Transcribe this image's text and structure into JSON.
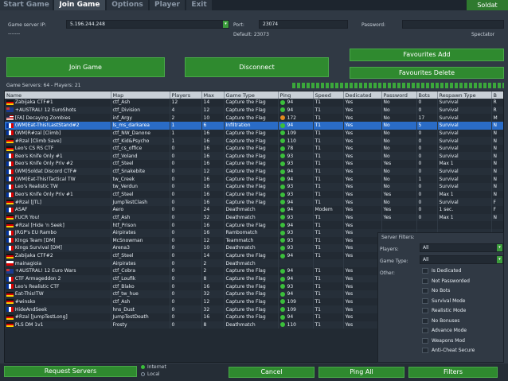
{
  "tabs": {
    "start_game": "Start Game",
    "join_game": "Join Game",
    "options": "Options",
    "player": "Player",
    "exit": "Exit",
    "brand": "Soldat"
  },
  "connect": {
    "ip_label": "Game server IP:",
    "ip_value": "5.196.244.248",
    "port_label": "Port:",
    "port_value": "23074",
    "port_default": "Default: 23073",
    "password_label": "Password:",
    "password_value": "",
    "spectator_label": "Spectator",
    "dashes": "-------"
  },
  "buttons": {
    "join": "Join Game",
    "disconnect": "Disconnect",
    "fav_add": "Favourites Add",
    "fav_delete": "Favourites Delete",
    "request": "Request Servers",
    "cancel": "Cancel",
    "ping_all": "Ping All",
    "filters": "Filters"
  },
  "status": {
    "servers_count": "Game Servers: 64 - Players: 21"
  },
  "columns": [
    "Name",
    "Map",
    "Players",
    "Max",
    "Game Type",
    "Ping",
    "Speed",
    "Dedicated",
    "Password",
    "Bots",
    "Respawn Type",
    "B"
  ],
  "rows": [
    {
      "flag": "de",
      "name": "Zabijaka CTF#1",
      "map": "ctf_Ash",
      "players": "12",
      "max": "14",
      "type": "Capture the Flag",
      "ping": "94",
      "speed": "T1",
      "ded": "Yes",
      "pass": "No",
      "bots": "0",
      "respawn": "Survival",
      "b": "R"
    },
    {
      "flag": "au",
      "name": "+AUSTRAL! 12 EuroShots",
      "map": "ctf_Division",
      "players": "4",
      "max": "12",
      "type": "Capture the Flag",
      "ping": "94",
      "speed": "T1",
      "ded": "Yes",
      "pass": "No",
      "bots": "0",
      "respawn": "Survival",
      "b": "R"
    },
    {
      "flag": "us",
      "name": "[FA] Decaying Zombies",
      "map": "inf_Argy",
      "players": "2",
      "max": "10",
      "type": "Capture the Flag",
      "ping": "172",
      "speed": "T1",
      "ded": "Yes",
      "pass": "No",
      "bots": "17",
      "respawn": "Survival",
      "b": "M",
      "ping_color": "orange"
    },
    {
      "flag": "fr",
      "name": "(WM)Eat-This!LastStand#2",
      "map": "ls_ms_darkarea",
      "players": "1",
      "max": "6",
      "type": "Infiltration",
      "ping": "94",
      "speed": "T1",
      "ded": "Yes",
      "pass": "No",
      "bots": "5",
      "respawn": "Survival",
      "b": "N",
      "selected": true
    },
    {
      "flag": "fr",
      "name": "(WM)R#zal [Climb]",
      "map": "ctf_NW_Danone",
      "players": "1",
      "max": "16",
      "type": "Capture the Flag",
      "ping": "109",
      "speed": "T1",
      "ded": "Yes",
      "pass": "No",
      "bots": "0",
      "respawn": "Survival",
      "b": "N"
    },
    {
      "flag": "de",
      "name": "#Rzal [Climb Save]",
      "map": "ctf_Kid&Psycho",
      "players": "1",
      "max": "16",
      "type": "Capture the Flag",
      "ping": "110",
      "speed": "T1",
      "ded": "Yes",
      "pass": "No",
      "bots": "0",
      "respawn": "Survival",
      "b": "N"
    },
    {
      "flag": "de",
      "name": "Leo's CS RS CTF",
      "map": "ctf_cs_office",
      "players": "0",
      "max": "16",
      "type": "Capture the Flag",
      "ping": "78",
      "speed": "T1",
      "ded": "Yes",
      "pass": "No",
      "bots": "0",
      "respawn": "Survival",
      "b": "N"
    },
    {
      "flag": "fr",
      "name": "Beo's Knife Only #1",
      "map": "ctf_Voland",
      "players": "0",
      "max": "16",
      "type": "Capture the Flag",
      "ping": "93",
      "speed": "T1",
      "ded": "Yes",
      "pass": "No",
      "bots": "0",
      "respawn": "Survival",
      "b": "N"
    },
    {
      "flag": "fr",
      "name": "Beo's Knife Only Priv #2",
      "map": "ctf_Steel",
      "players": "0",
      "max": "16",
      "type": "Capture the Flag",
      "ping": "93",
      "speed": "T1",
      "ded": "Yes",
      "pass": "Yes",
      "bots": "0",
      "respawn": "Max 1",
      "b": "N"
    },
    {
      "flag": "fr",
      "name": "(WM)Soldat Discord CTF#",
      "map": "ctf_Snakebite",
      "players": "0",
      "max": "12",
      "type": "Capture the Flag",
      "ping": "94",
      "speed": "T1",
      "ded": "Yes",
      "pass": "No",
      "bots": "0",
      "respawn": "Survival",
      "b": "N"
    },
    {
      "flag": "fr",
      "name": "(WM)Eat-This!Tactical TW",
      "map": "tw_Creek",
      "players": "0",
      "max": "16",
      "type": "Capture the Flag",
      "ping": "94",
      "speed": "T1",
      "ded": "Yes",
      "pass": "No",
      "bots": "1",
      "respawn": "Survival",
      "b": "N"
    },
    {
      "flag": "fr",
      "name": "Leo's Realistic TW",
      "map": "tw_Verdun",
      "players": "0",
      "max": "16",
      "type": "Capture the Flag",
      "ping": "93",
      "speed": "T1",
      "ded": "Yes",
      "pass": "No",
      "bots": "0",
      "respawn": "Survival",
      "b": "N"
    },
    {
      "flag": "fr",
      "name": "Beo's Knife Only Priv #1",
      "map": "ctf_Steel",
      "players": "0",
      "max": "16",
      "type": "Capture the Flag",
      "ping": "93",
      "speed": "T1",
      "ded": "Yes",
      "pass": "Yes",
      "bots": "0",
      "respawn": "Max 1",
      "b": "N"
    },
    {
      "flag": "de",
      "name": "#Rzal [JTL]",
      "map": "JumpTestClash",
      "players": "0",
      "max": "16",
      "type": "Capture the Flag",
      "ping": "94",
      "speed": "T1",
      "ded": "Yes",
      "pass": "No",
      "bots": "0",
      "respawn": "Survival",
      "b": "F"
    },
    {
      "flag": "fr",
      "name": "ASAF",
      "map": "Aero",
      "players": "0",
      "max": "24",
      "type": "Deathmatch",
      "ping": "94",
      "speed": "Modem",
      "ded": "Yes",
      "pass": "Yes",
      "bots": "0",
      "respawn": "1 sec.",
      "b": "F"
    },
    {
      "flag": "de",
      "name": "FUCR You!",
      "map": "ctf_Ash",
      "players": "0",
      "max": "32",
      "type": "Deathmatch",
      "ping": "93",
      "speed": "T1",
      "ded": "Yes",
      "pass": "Yes",
      "bots": "0",
      "respawn": "Max 1",
      "b": "N"
    },
    {
      "flag": "de",
      "name": "#Rzal [Hide 'n Seek]",
      "map": "htf_Prison",
      "players": "0",
      "max": "16",
      "type": "Capture the Flag",
      "ping": "94",
      "speed": "T1",
      "ded": "Yes",
      "pass": "",
      "bots": "",
      "respawn": "",
      "b": ""
    },
    {
      "flag": "fr",
      "name": "JRGP's EU Rambo",
      "map": "Airpirates",
      "players": "0",
      "max": "16",
      "type": "Rambomatch",
      "ping": "93",
      "speed": "T1",
      "ded": "Yes",
      "pass": "",
      "bots": "",
      "respawn": "",
      "b": ""
    },
    {
      "flag": "fr",
      "name": "KIngs Team [DM]",
      "map": "McSnowman",
      "players": "0",
      "max": "12",
      "type": "Teammatch",
      "ping": "93",
      "speed": "T1",
      "ded": "Yes",
      "pass": "",
      "bots": "",
      "respawn": "",
      "b": ""
    },
    {
      "flag": "fr",
      "name": "KIngs Survival [DM]",
      "map": "Arena3",
      "players": "0",
      "max": "10",
      "type": "Deathmatch",
      "ping": "93",
      "speed": "T1",
      "ded": "Yes",
      "pass": "",
      "bots": "",
      "respawn": "",
      "b": ""
    },
    {
      "flag": "de",
      "name": "Zabijaka CTF#2",
      "map": "ctf_Steel",
      "players": "0",
      "max": "14",
      "type": "Capture the Flag",
      "ping": "94",
      "speed": "T1",
      "ded": "Yes",
      "pass": "",
      "bots": "",
      "respawn": "",
      "b": ""
    },
    {
      "flag": "pl",
      "name": "mainagioia",
      "map": "Airpirates",
      "players": "0",
      "max": "2",
      "type": "Deathmatch",
      "ping": "",
      "speed": "",
      "ded": "",
      "pass": "",
      "bots": "",
      "respawn": "",
      "b": ""
    },
    {
      "flag": "au",
      "name": "+AUSTRAL! 12 Euro Wars",
      "map": "ctf_Cobra",
      "players": "0",
      "max": "2",
      "type": "Capture the Flag",
      "ping": "94",
      "speed": "T1",
      "ded": "Yes",
      "pass": "",
      "bots": "",
      "respawn": "",
      "b": ""
    },
    {
      "flag": "fr",
      "name": "CTF Armageddon 2",
      "map": "ctf_Loufik",
      "players": "0",
      "max": "8",
      "type": "Capture the Flag",
      "ping": "94",
      "speed": "T1",
      "ded": "Yes",
      "pass": "",
      "bots": "",
      "respawn": "",
      "b": ""
    },
    {
      "flag": "fr",
      "name": "Leo's Realistic CTF",
      "map": "ctf_Blako",
      "players": "0",
      "max": "16",
      "type": "Capture the Flag",
      "ping": "93",
      "speed": "T1",
      "ded": "Yes",
      "pass": "",
      "bots": "",
      "respawn": "",
      "b": ""
    },
    {
      "flag": "de",
      "name": "Eat-This!TW",
      "map": "ctf_tw_hue",
      "players": "0",
      "max": "32",
      "type": "Capture the Flag",
      "ping": "94",
      "speed": "T1",
      "ded": "Yes",
      "pass": "",
      "bots": "",
      "respawn": "",
      "b": ""
    },
    {
      "flag": "de",
      "name": "#winsko",
      "map": "ctf_Ash",
      "players": "0",
      "max": "12",
      "type": "Capture the Flag",
      "ping": "109",
      "speed": "T1",
      "ded": "Yes",
      "pass": "",
      "bots": "",
      "respawn": "",
      "b": ""
    },
    {
      "flag": "fr",
      "name": "HideAndSeek",
      "map": "hns_Dust",
      "players": "0",
      "max": "32",
      "type": "Capture the Flag",
      "ping": "109",
      "speed": "T1",
      "ded": "Yes",
      "pass": "",
      "bots": "",
      "respawn": "",
      "b": ""
    },
    {
      "flag": "de",
      "name": "#Rzal [JumpTestLong]",
      "map": "JumpTestDeath",
      "players": "0",
      "max": "16",
      "type": "Capture the Flag",
      "ping": "94",
      "speed": "T1",
      "ded": "Yes",
      "pass": "",
      "bots": "",
      "respawn": "",
      "b": ""
    },
    {
      "flag": "de",
      "name": "PLS DM 1v1",
      "map": "Frosty",
      "players": "0",
      "max": "8",
      "type": "Deathmatch",
      "ping": "110",
      "speed": "T1",
      "ded": "Yes",
      "pass": "",
      "bots": "",
      "respawn": "",
      "b": ""
    }
  ],
  "filters": {
    "title": "Server Filters:",
    "players_label": "Players:",
    "players_value": "All",
    "gametype_label": "Game Type:",
    "gametype_value": "All",
    "other_label": "Other:",
    "options": [
      "Is Dedicated",
      "Not Passworded",
      "No Bots",
      "Survival Mode",
      "Realistic Mode",
      "No Bonuses",
      "Advance Mode",
      "Weapons Mod",
      "Anti-Cheat Secure"
    ]
  },
  "source": {
    "internet": "Internet",
    "local": "Local",
    "selected": "internet"
  },
  "colors": {
    "accent_green": "#2f8a2f",
    "selection_blue": "#2a6cc7",
    "background": "#303944"
  }
}
